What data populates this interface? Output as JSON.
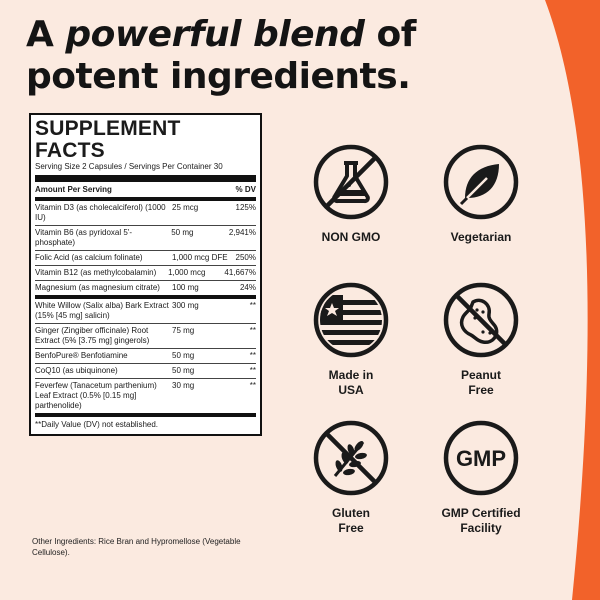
{
  "headline": {
    "part1": "A ",
    "emphasis": "powerful blend",
    "part2": " of",
    "line2": "potent ingredients."
  },
  "facts": {
    "title": "SUPPLEMENT FACTS",
    "serving": "Serving Size 2 Capsules / Servings Per Container 30",
    "header_left": "Amount Per Serving",
    "header_right": "% DV",
    "rows": [
      {
        "name": "Vitamin D3 (as cholecalciferol) (1000 IU)",
        "amount": "25 mcg",
        "dv": "125%"
      },
      {
        "name": "Vitamin B6 (as pyridoxal 5'-phosphate)",
        "amount": "50 mg",
        "dv": "2,941%"
      },
      {
        "name": "Folic Acid (as calcium folinate)",
        "amount": "1,000 mcg DFE",
        "dv": "250%"
      },
      {
        "name": "Vitamin B12 (as methylcobalamin)",
        "amount": "1,000 mcg",
        "dv": "41,667%"
      },
      {
        "name": "Magnesium (as magnesium citrate)",
        "amount": "100 mg",
        "dv": "24%"
      },
      {
        "name": "White Willow (Salix alba) Bark Extract (15% [45 mg] salicin)",
        "amount": "300 mg",
        "dv": "**"
      },
      {
        "name": "Ginger (Zingiber officinale) Root Extract (5% [3.75 mg] gingerols)",
        "amount": "75 mg",
        "dv": "**"
      },
      {
        "name": "BenfoPure® Benfotiamine",
        "amount": "50 mg",
        "dv": "**"
      },
      {
        "name": "CoQ10 (as ubiquinone)",
        "amount": "50 mg",
        "dv": "**"
      },
      {
        "name": "Feverfew (Tanacetum parthenium) Leaf Extract (0.5% [0.15 mg] parthenolide)",
        "amount": "30 mg",
        "dv": "**"
      }
    ],
    "footnote": "**Daily Value (DV) not established."
  },
  "other_ingredients": "Other Ingredients: Rice Bran and Hypromellose (Vegetable Cellulose).",
  "badges": [
    {
      "label": "NON GMO",
      "icon": "non-gmo-icon"
    },
    {
      "label": "Vegetarian",
      "icon": "leaf-icon"
    },
    {
      "label": "Made in USA",
      "icon": "usa-flag-icon"
    },
    {
      "label": "Peanut Free",
      "icon": "peanut-free-icon"
    },
    {
      "label": "Gluten Free",
      "icon": "gluten-free-icon"
    },
    {
      "label": "GMP Certified Facility",
      "icon": "gmp-icon"
    }
  ],
  "gmp_text": "GMP",
  "colors": {
    "background": "#fbeae0",
    "accent": "#f2622a",
    "ink": "#1a1a1a"
  }
}
